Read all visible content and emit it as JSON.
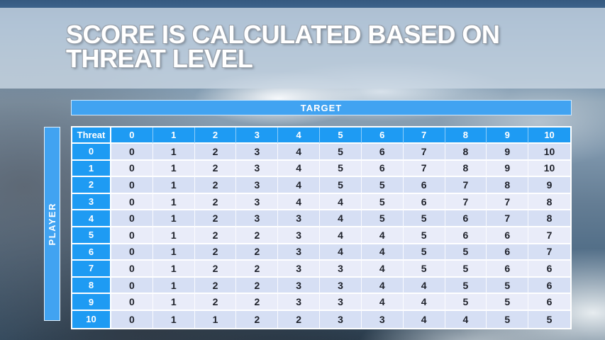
{
  "slide": {
    "title_lines": [
      "SCORE IS CALCULATED BASED ON",
      "THREAT LEVEL"
    ]
  },
  "table": {
    "target_label": "TARGET",
    "player_label": "PLAYER",
    "corner_label": "Threat",
    "column_headers": [
      "0",
      "1",
      "2",
      "3",
      "4",
      "5",
      "6",
      "7",
      "8",
      "9",
      "10"
    ],
    "rows": [
      {
        "threat": "0",
        "values": [
          "0",
          "1",
          "2",
          "3",
          "4",
          "5",
          "6",
          "7",
          "8",
          "9",
          "10"
        ]
      },
      {
        "threat": "1",
        "values": [
          "0",
          "1",
          "2",
          "3",
          "4",
          "5",
          "6",
          "7",
          "8",
          "9",
          "10"
        ]
      },
      {
        "threat": "2",
        "values": [
          "0",
          "1",
          "2",
          "3",
          "4",
          "5",
          "5",
          "6",
          "7",
          "8",
          "9"
        ]
      },
      {
        "threat": "3",
        "values": [
          "0",
          "1",
          "2",
          "3",
          "4",
          "4",
          "5",
          "6",
          "7",
          "7",
          "8"
        ]
      },
      {
        "threat": "4",
        "values": [
          "0",
          "1",
          "2",
          "3",
          "3",
          "4",
          "5",
          "5",
          "6",
          "7",
          "8"
        ]
      },
      {
        "threat": "5",
        "values": [
          "0",
          "1",
          "2",
          "2",
          "3",
          "4",
          "4",
          "5",
          "6",
          "6",
          "7"
        ]
      },
      {
        "threat": "6",
        "values": [
          "0",
          "1",
          "2",
          "2",
          "3",
          "4",
          "4",
          "5",
          "5",
          "6",
          "7"
        ]
      },
      {
        "threat": "7",
        "values": [
          "0",
          "1",
          "2",
          "2",
          "3",
          "3",
          "4",
          "5",
          "5",
          "6",
          "6"
        ]
      },
      {
        "threat": "8",
        "values": [
          "0",
          "1",
          "2",
          "2",
          "3",
          "3",
          "4",
          "4",
          "5",
          "5",
          "6"
        ]
      },
      {
        "threat": "9",
        "values": [
          "0",
          "1",
          "2",
          "2",
          "3",
          "3",
          "4",
          "4",
          "5",
          "5",
          "6"
        ]
      },
      {
        "threat": "10",
        "values": [
          "0",
          "1",
          "1",
          "2",
          "2",
          "3",
          "3",
          "4",
          "4",
          "5",
          "5"
        ]
      }
    ]
  },
  "colors": {
    "table_header_blue": "#1e9bf3",
    "bar_blue": "#41a3f1",
    "band_dark": "#d6dff4",
    "band_light": "#e9ecf9",
    "cell_text": "#1e212a",
    "banner_overlay": "#cbd7e3",
    "title_text": "#ffffff"
  }
}
